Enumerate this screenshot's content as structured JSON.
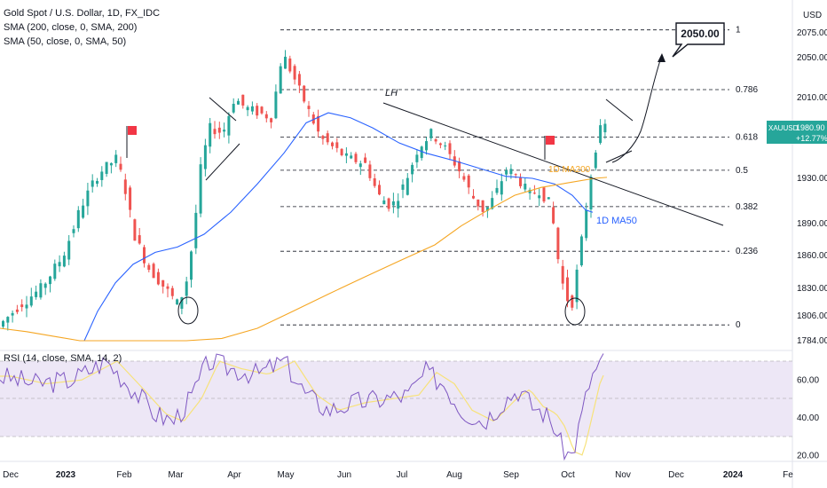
{
  "header": {
    "title": "Gold Spot / U.S. Dollar, 1D, FX_IDC",
    "sma200": "SMA (200, close, 0, SMA, 200)",
    "sma50": "SMA (50, close, 0, SMA, 50)",
    "currency": "USD"
  },
  "rsi_legend": "RSI (14, close, SMA, 14, 2)",
  "price_badge": {
    "symbol": "XAUUSD",
    "price": "1980.90",
    "change": "+12.77%"
  },
  "annotations": {
    "target": "2050.00",
    "lh": "LH",
    "ma200": "1D MA200",
    "ma50": "1D MA50"
  },
  "colors": {
    "up": "#26a69a",
    "down": "#ef5350",
    "ma50": "#2962ff",
    "ma200": "#f5a623",
    "rsi": "#7e57c2",
    "rsi_signal": "#f7e27a",
    "rsi_band": "#ede7f6"
  },
  "chart_data": {
    "type": "candlestick",
    "instrument": "Gold Spot / U.S. Dollar",
    "timeframe": "1D",
    "y_axis_ticks": [
      "2075.00",
      "2050.00",
      "2010.00",
      "1930.00",
      "1890.00",
      "1860.00",
      "1830.00",
      "1806.00",
      "1784.00"
    ],
    "rsi_axis_ticks": [
      "60.00",
      "40.00",
      "20.00"
    ],
    "x_axis_ticks": [
      "Dec",
      "2023",
      "Feb",
      "Mar",
      "Apr",
      "May",
      "Jun",
      "Jul",
      "Aug",
      "Sep",
      "Oct",
      "Nov",
      "Dec",
      "2024",
      "Fe"
    ],
    "fib_levels": [
      {
        "label": "1",
        "price": 2078
      },
      {
        "label": "0.786",
        "price": 2018
      },
      {
        "label": "0.618",
        "price": 1971
      },
      {
        "label": "0.5",
        "price": 1938
      },
      {
        "label": "0.382",
        "price": 1905
      },
      {
        "label": "0.236",
        "price": 1864
      },
      {
        "label": "0",
        "price": 1798
      }
    ],
    "series": [
      {
        "name": "SMA 50",
        "color": "#2962ff"
      },
      {
        "name": "SMA 200",
        "color": "#f5a623"
      },
      {
        "name": "RSI",
        "color": "#7e57c2"
      }
    ],
    "rsi_band": [
      30,
      70
    ]
  }
}
